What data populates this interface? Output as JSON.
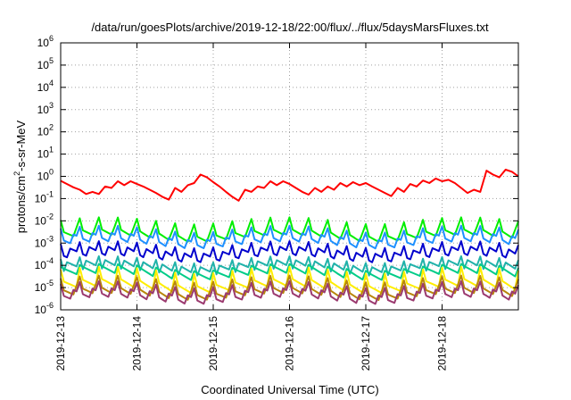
{
  "chart_data": {
    "type": "line",
    "title": "/data/run/goesPlots/archive/2019-12-18/22:00/flux/../flux/5daysMarsFluxes.txt",
    "xlabel": "Coordinated Universal Time (UTC)",
    "ylabel": {
      "main": "protons/cm",
      "sup": "2",
      "rest": "-s-sr-MeV"
    },
    "y_scale": "log",
    "ylim": [
      1e-06,
      1000000.0
    ],
    "y_ticks": [
      {
        "value": 1e-06,
        "base": "10",
        "exp": "-6"
      },
      {
        "value": 1e-05,
        "base": "10",
        "exp": "-5"
      },
      {
        "value": 0.0001,
        "base": "10",
        "exp": "-4"
      },
      {
        "value": 0.001,
        "base": "10",
        "exp": "-3"
      },
      {
        "value": 0.01,
        "base": "10",
        "exp": "-2"
      },
      {
        "value": 0.1,
        "base": "10",
        "exp": "-1"
      },
      {
        "value": 1,
        "base": "10",
        "exp": "0"
      },
      {
        "value": 10.0,
        "base": "10",
        "exp": "1"
      },
      {
        "value": 100.0,
        "base": "10",
        "exp": "2"
      },
      {
        "value": 1000.0,
        "base": "10",
        "exp": "3"
      },
      {
        "value": 10000.0,
        "base": "10",
        "exp": "4"
      },
      {
        "value": 100000.0,
        "base": "10",
        "exp": "5"
      },
      {
        "value": 1000000.0,
        "base": "10",
        "exp": "6"
      }
    ],
    "xlim": [
      "2019-12-13",
      "2019-12-19"
    ],
    "x_ticks": [
      "2019-12-13",
      "2019-12-14",
      "2019-12-15",
      "2019-12-16",
      "2019-12-17",
      "2019-12-18"
    ],
    "grid": true,
    "series": [
      {
        "color": "#ff0000",
        "x_days": [
          0,
          0.083,
          0.167,
          0.25,
          0.333,
          0.417,
          0.5,
          0.583,
          0.667,
          0.75,
          0.833,
          0.917,
          1,
          1.083,
          1.167,
          1.25,
          1.333,
          1.417,
          1.5,
          1.583,
          1.667,
          1.75,
          1.833,
          1.917,
          2,
          2.083,
          2.167,
          2.25,
          2.333,
          2.417,
          2.5,
          2.583,
          2.667,
          2.75,
          2.833,
          2.917,
          3,
          3.083,
          3.167,
          3.25,
          3.333,
          3.417,
          3.5,
          3.583,
          3.667,
          3.75,
          3.833,
          3.917,
          4,
          4.083,
          4.167,
          4.25,
          4.333,
          4.417,
          4.5,
          4.583,
          4.667,
          4.75,
          4.833,
          4.917,
          5,
          5.083,
          5.167,
          5.25,
          5.333,
          5.417,
          5.5,
          5.583,
          5.667,
          5.75,
          5.833,
          5.917,
          6
        ],
        "values": [
          0.63,
          0.45,
          0.32,
          0.25,
          0.16,
          0.2,
          0.16,
          0.35,
          0.3,
          0.6,
          0.4,
          0.6,
          0.45,
          0.35,
          0.25,
          0.18,
          0.12,
          0.09,
          0.3,
          0.2,
          0.4,
          0.5,
          1.2,
          0.9,
          0.55,
          0.35,
          0.2,
          0.12,
          0.08,
          0.25,
          0.2,
          0.35,
          0.3,
          0.6,
          0.4,
          0.6,
          0.45,
          0.3,
          0.2,
          0.15,
          0.3,
          0.2,
          0.35,
          0.25,
          0.5,
          0.35,
          0.55,
          0.4,
          0.5,
          0.35,
          0.25,
          0.18,
          0.13,
          0.3,
          0.2,
          0.45,
          0.35,
          0.65,
          0.5,
          0.8,
          0.6,
          0.7,
          0.5,
          0.3,
          0.18,
          0.25,
          0.2,
          1.8,
          1.2,
          0.9,
          2.0,
          1.6,
          1.0
        ]
      },
      {
        "color": "#00ee00",
        "x_days": [],
        "values": [],
        "base": 0.005,
        "amp": 1.0
      },
      {
        "color": "#1e90ff",
        "x_days": [],
        "values": [],
        "base": 0.0025,
        "amp": 1.0
      },
      {
        "color": "#0000cd",
        "x_days": [],
        "values": [],
        "base": 0.0006,
        "amp": 1.0
      },
      {
        "color": "#20b2aa",
        "x_days": [],
        "values": [],
        "base": 0.00015,
        "amp": 1.0
      },
      {
        "color": "#00cc88",
        "x_days": [],
        "values": [],
        "base": 8e-05,
        "amp": 1.0
      },
      {
        "color": "#ffee00",
        "x_days": [],
        "values": [],
        "base": 2.5e-05,
        "amp": 1.0
      },
      {
        "color": "#b8860b",
        "x_days": [],
        "values": [],
        "base": 1.2e-05,
        "amp": 1.0
      },
      {
        "color": "#9b3a6f",
        "x_days": [],
        "values": [],
        "base": 8e-06,
        "amp": 1.0
      }
    ]
  }
}
